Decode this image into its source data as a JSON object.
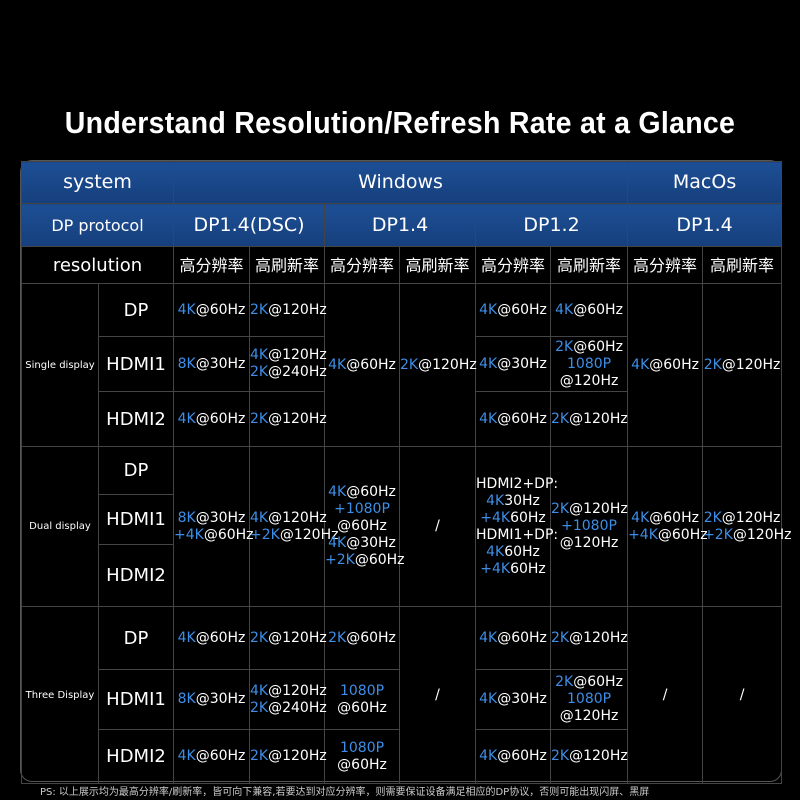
{
  "title": "Understand Resolution/Refresh Rate at a Glance",
  "header": {
    "system": "system",
    "windows": "Windows",
    "macos": "MacOs",
    "dp_protocol": "DP protocol",
    "protocols": [
      "DP1.4(DSC)",
      "DP1.4",
      "DP1.2",
      "DP1.4"
    ],
    "resolution": "resolution",
    "subheaders": [
      "高分辨率",
      "高刷新率",
      "高分辨率",
      "高刷新率",
      "高分辨率",
      "高刷新率",
      "高分辨率",
      "高刷新率"
    ]
  },
  "groups": [
    {
      "name": "Single display",
      "ports": [
        "DP",
        "HDMI1",
        "HDMI2"
      ],
      "rows": [
        [
          [
            "4K@60Hz"
          ],
          [
            "2K@120Hz"
          ],
          [
            "4K@60Hz"
          ],
          [
            "2K@120Hz"
          ],
          [
            "4K@60Hz"
          ],
          [
            "4K@60Hz"
          ],
          [
            "4K@60Hz"
          ],
          [
            "2K@120Hz"
          ]
        ],
        [
          [
            "8K@30Hz"
          ],
          [
            "4K@120Hz",
            "2K@240Hz"
          ],
          [
            "4K@30Hz"
          ],
          [
            "2K@60Hz",
            "1080P",
            "@120Hz"
          ]
        ],
        [
          [
            "4K@60Hz"
          ],
          [
            "2K@120Hz"
          ],
          [
            "4K@60Hz"
          ],
          [
            "2K@120Hz"
          ]
        ]
      ]
    },
    {
      "name": "Dual display",
      "ports": [
        "DP",
        "HDMI1",
        "HDMI2"
      ],
      "rows": [
        [
          [
            "8K@30Hz",
            "+4K@60Hz"
          ],
          [
            "4K@120Hz",
            "+2K@120Hz"
          ],
          [
            "4K@60Hz",
            "+1080P",
            "@60Hz",
            "4K@30Hz",
            "+2K@60Hz"
          ],
          [
            "/"
          ],
          [
            "HDMI2+DP:",
            "4K30Hz",
            "+4K60Hz",
            "HDMI1+DP:",
            "4K60Hz",
            "+4K60Hz"
          ],
          [
            "2K@120Hz",
            "+1080P",
            "@120Hz"
          ],
          [
            "4K@60Hz",
            "+4K@60Hz"
          ],
          [
            "2K@120Hz",
            "+2K@120Hz"
          ]
        ]
      ]
    },
    {
      "name": "Three Display",
      "ports": [
        "DP",
        "HDMI1",
        "HDMI2"
      ],
      "rows": [
        [
          [
            "4K@60Hz"
          ],
          [
            "2K@120Hz"
          ],
          [
            "2K@60Hz"
          ],
          [
            "/"
          ],
          [
            "4K@60Hz"
          ],
          [
            "2K@120Hz"
          ],
          [
            "/"
          ],
          [
            "/"
          ]
        ],
        [
          [
            "8K@30Hz"
          ],
          [
            "4K@120Hz",
            "2K@240Hz"
          ],
          [
            "1080P",
            "@60Hz"
          ],
          [
            "4K@30Hz"
          ],
          [
            "2K@60Hz",
            "1080P",
            "@120Hz"
          ]
        ],
        [
          [
            "4K@60Hz"
          ],
          [
            "2K@120Hz"
          ],
          [
            "1080P",
            "@60Hz"
          ],
          [
            "4K@60Hz"
          ],
          [
            "2K@120Hz"
          ]
        ]
      ]
    }
  ],
  "footnote": "PS: 以上展示均为最高分辨率/刷新率，皆可向下兼容,若要达到对应分辨率，则需要保证设备满足相应的DP协议，否则可能出现闪屏、黑屏"
}
